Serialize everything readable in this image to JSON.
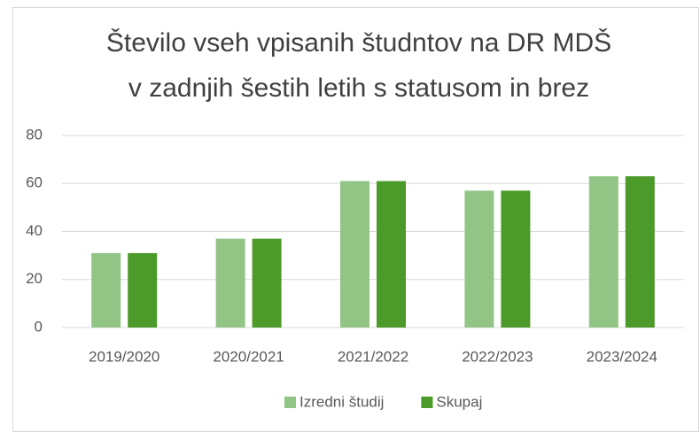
{
  "chart_data": {
    "type": "bar",
    "title": [
      "Število vseh vpisanih študntov na DR MDŠ",
      "v zadnjih šestih letih s statusom in brez"
    ],
    "categories": [
      "2019/2020",
      "2020/2021",
      "2021/2022",
      "2022/2023",
      "2023/2024"
    ],
    "series": [
      {
        "name": "Izredni študij",
        "color": "#92c585",
        "values": [
          31,
          37,
          61,
          57,
          63
        ]
      },
      {
        "name": "Skupaj",
        "color": "#4c9a2a",
        "values": [
          31,
          37,
          61,
          57,
          63
        ]
      }
    ],
    "ylim": [
      0,
      80
    ],
    "yticks": [
      0,
      20,
      40,
      60,
      80
    ],
    "grid": true,
    "legend": "bottom"
  }
}
